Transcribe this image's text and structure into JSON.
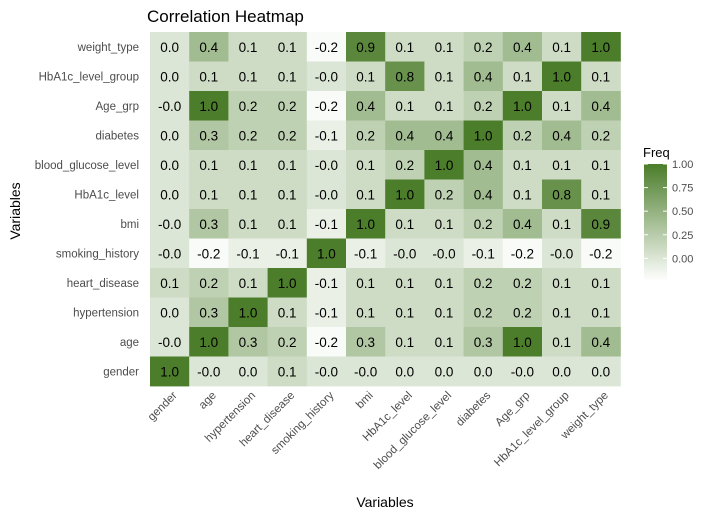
{
  "chart_data": {
    "type": "heatmap",
    "title": "Correlation Heatmap",
    "xlabel": "Variables",
    "ylabel": "Variables",
    "x_categories": [
      "gender",
      "age",
      "hypertension",
      "heart_disease",
      "smoking_history",
      "bmi",
      "HbA1c_level",
      "blood_glucose_level",
      "diabetes",
      "Age_grp",
      "HbA1c_level_group",
      "weight_type"
    ],
    "y_categories": [
      "weight_type",
      "HbA1c_level_group",
      "Age_grp",
      "diabetes",
      "blood_glucose_level",
      "HbA1c_level",
      "bmi",
      "smoking_history",
      "heart_disease",
      "hypertension",
      "age",
      "gender"
    ],
    "values": [
      [
        0.0,
        0.4,
        0.1,
        0.1,
        -0.2,
        0.9,
        0.1,
        0.1,
        0.2,
        0.4,
        0.1,
        1.0
      ],
      [
        0.0,
        0.1,
        0.1,
        0.1,
        -0.0,
        0.1,
        0.8,
        0.1,
        0.4,
        0.1,
        1.0,
        0.1
      ],
      [
        -0.0,
        1.0,
        0.2,
        0.2,
        -0.2,
        0.4,
        0.1,
        0.1,
        0.2,
        1.0,
        0.1,
        0.4
      ],
      [
        0.0,
        0.3,
        0.2,
        0.2,
        -0.1,
        0.2,
        0.4,
        0.4,
        1.0,
        0.2,
        0.4,
        0.2
      ],
      [
        0.0,
        0.1,
        0.1,
        0.1,
        -0.0,
        0.1,
        0.2,
        1.0,
        0.4,
        0.1,
        0.1,
        0.1
      ],
      [
        0.0,
        0.1,
        0.1,
        0.1,
        -0.0,
        0.1,
        1.0,
        0.2,
        0.4,
        0.1,
        0.8,
        0.1
      ],
      [
        -0.0,
        0.3,
        0.1,
        0.1,
        -0.1,
        1.0,
        0.1,
        0.1,
        0.2,
        0.4,
        0.1,
        0.9
      ],
      [
        -0.0,
        -0.2,
        -0.1,
        -0.1,
        1.0,
        -0.1,
        -0.0,
        -0.0,
        -0.1,
        -0.2,
        -0.0,
        -0.2
      ],
      [
        0.1,
        0.2,
        0.1,
        1.0,
        -0.1,
        0.1,
        0.1,
        0.1,
        0.2,
        0.2,
        0.1,
        0.1
      ],
      [
        0.0,
        0.3,
        1.0,
        0.1,
        -0.1,
        0.1,
        0.1,
        0.1,
        0.2,
        0.2,
        0.1,
        0.1
      ],
      [
        -0.0,
        1.0,
        0.3,
        0.2,
        -0.2,
        0.3,
        0.1,
        0.1,
        0.3,
        1.0,
        0.1,
        0.4
      ],
      [
        1.0,
        -0.0,
        0.0,
        0.1,
        -0.0,
        -0.0,
        0.0,
        0.0,
        0.0,
        -0.0,
        0.0,
        0.0
      ]
    ],
    "value_labels": [
      [
        "0.0",
        "0.4",
        "0.1",
        "0.1",
        "-0.2",
        "0.9",
        "0.1",
        "0.1",
        "0.2",
        "0.4",
        "0.1",
        "1.0"
      ],
      [
        "0.0",
        "0.1",
        "0.1",
        "0.1",
        "-0.0",
        "0.1",
        "0.8",
        "0.1",
        "0.4",
        "0.1",
        "1.0",
        "0.1"
      ],
      [
        "-0.0",
        "1.0",
        "0.2",
        "0.2",
        "-0.2",
        "0.4",
        "0.1",
        "0.1",
        "0.2",
        "1.0",
        "0.1",
        "0.4"
      ],
      [
        "0.0",
        "0.3",
        "0.2",
        "0.2",
        "-0.1",
        "0.2",
        "0.4",
        "0.4",
        "1.0",
        "0.2",
        "0.4",
        "0.2"
      ],
      [
        "0.0",
        "0.1",
        "0.1",
        "0.1",
        "-0.0",
        "0.1",
        "0.2",
        "1.0",
        "0.4",
        "0.1",
        "0.1",
        "0.1"
      ],
      [
        "0.0",
        "0.1",
        "0.1",
        "0.1",
        "-0.0",
        "0.1",
        "1.0",
        "0.2",
        "0.4",
        "0.1",
        "0.8",
        "0.1"
      ],
      [
        "-0.0",
        "0.3",
        "0.1",
        "0.1",
        "-0.1",
        "1.0",
        "0.1",
        "0.1",
        "0.2",
        "0.4",
        "0.1",
        "0.9"
      ],
      [
        "-0.0",
        "-0.2",
        "-0.1",
        "-0.1",
        "1.0",
        "-0.1",
        "-0.0",
        "-0.0",
        "-0.1",
        "-0.2",
        "-0.0",
        "-0.2"
      ],
      [
        "0.1",
        "0.2",
        "0.1",
        "1.0",
        "-0.1",
        "0.1",
        "0.1",
        "0.1",
        "0.2",
        "0.2",
        "0.1",
        "0.1"
      ],
      [
        "0.0",
        "0.3",
        "1.0",
        "0.1",
        "-0.1",
        "0.1",
        "0.1",
        "0.1",
        "0.2",
        "0.2",
        "0.1",
        "0.1"
      ],
      [
        "-0.0",
        "1.0",
        "0.3",
        "0.2",
        "-0.2",
        "0.3",
        "0.1",
        "0.1",
        "0.3",
        "1.0",
        "0.1",
        "0.4"
      ],
      [
        "1.0",
        "-0.0",
        "0.0",
        "0.1",
        "-0.0",
        "-0.0",
        "0.0",
        "0.0",
        "0.0",
        "-0.0",
        "0.0",
        "0.0"
      ]
    ],
    "color_scale": {
      "low": "#ffffff",
      "high": "#4b7d2a",
      "domain": [
        -0.24,
        1.0
      ]
    },
    "legend": {
      "title": "Freq",
      "placement": "right",
      "ticks": [
        1.0,
        0.75,
        0.5,
        0.25,
        0.0
      ],
      "tick_labels": [
        "1.00",
        "0.75",
        "0.50",
        "0.25",
        "0.00"
      ]
    },
    "grid": false
  }
}
